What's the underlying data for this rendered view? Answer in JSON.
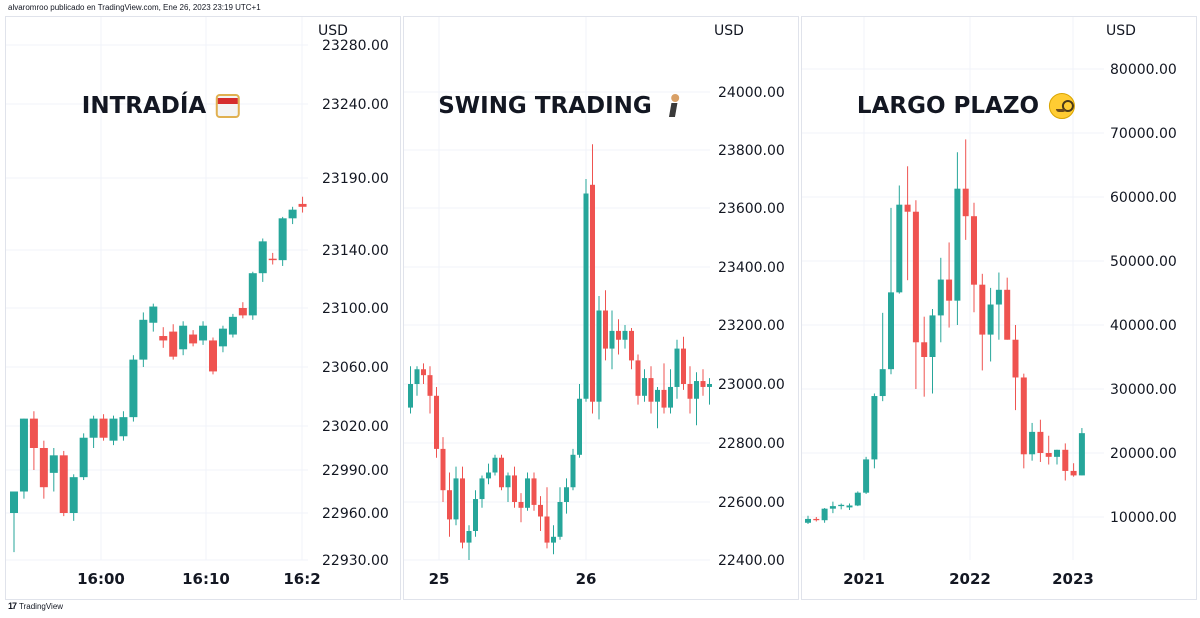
{
  "header": {
    "text": "alvaromroo publicado en TradingView.com, Ene 26, 2023 23:19 UTC+1"
  },
  "footer": {
    "logo": "17",
    "brand": "TradingView"
  },
  "colors": {
    "up": "#26a69a",
    "down": "#ef5350",
    "grid": "#f0f3fa",
    "axis_text": "#131722"
  },
  "chart_data": [
    {
      "type": "candlestick",
      "title": "INTRADÍA",
      "title_icon": "ninja-emoji-icon",
      "currency": "USD",
      "y_ticks": [
        "23280.00",
        "23240.00",
        "23190.00",
        "23140.00",
        "23100.00",
        "23060.00",
        "23020.00",
        "22990.00",
        "22960.00",
        "22930.00"
      ],
      "y_tick_values": [
        23280,
        23240,
        23190,
        23140,
        23100,
        23060,
        23020,
        22990,
        22960,
        22930
      ],
      "x_ticks": [
        "16:00",
        "16:10",
        "16:2"
      ],
      "candles": [
        {
          "o": 22960,
          "h": 22975,
          "l": 22935,
          "c": 22975
        },
        {
          "o": 22975,
          "h": 23025,
          "l": 22970,
          "c": 23025
        },
        {
          "o": 23025,
          "h": 23030,
          "l": 22990,
          "c": 23005
        },
        {
          "o": 23005,
          "h": 23010,
          "l": 22970,
          "c": 22978
        },
        {
          "o": 22988,
          "h": 23005,
          "l": 22975,
          "c": 23000
        },
        {
          "o": 23000,
          "h": 23003,
          "l": 22958,
          "c": 22960
        },
        {
          "o": 22960,
          "h": 22987,
          "l": 22955,
          "c": 22985
        },
        {
          "o": 22985,
          "h": 23015,
          "l": 22983,
          "c": 23012
        },
        {
          "o": 23012,
          "h": 23027,
          "l": 23005,
          "c": 23025
        },
        {
          "o": 23025,
          "h": 23028,
          "l": 23010,
          "c": 23012
        },
        {
          "o": 23010,
          "h": 23027,
          "l": 23007,
          "c": 23025
        },
        {
          "o": 23013,
          "h": 23030,
          "l": 23010,
          "c": 23026
        },
        {
          "o": 23026,
          "h": 23068,
          "l": 23023,
          "c": 23065
        },
        {
          "o": 23065,
          "h": 23097,
          "l": 23060,
          "c": 23092
        },
        {
          "o": 23090,
          "h": 23103,
          "l": 23084,
          "c": 23101
        },
        {
          "o": 23081,
          "h": 23087,
          "l": 23073,
          "c": 23078
        },
        {
          "o": 23084,
          "h": 23089,
          "l": 23065,
          "c": 23067
        },
        {
          "o": 23072,
          "h": 23091,
          "l": 23068,
          "c": 23088
        },
        {
          "o": 23082,
          "h": 23085,
          "l": 23074,
          "c": 23076
        },
        {
          "o": 23078,
          "h": 23091,
          "l": 23075,
          "c": 23088
        },
        {
          "o": 23078,
          "h": 23080,
          "l": 23055,
          "c": 23057
        },
        {
          "o": 23074,
          "h": 23088,
          "l": 23070,
          "c": 23086
        },
        {
          "o": 23082,
          "h": 23096,
          "l": 23080,
          "c": 23094
        },
        {
          "o": 23100,
          "h": 23104,
          "l": 23093,
          "c": 23095
        },
        {
          "o": 23095,
          "h": 23125,
          "l": 23092,
          "c": 23124
        },
        {
          "o": 23124,
          "h": 23148,
          "l": 23118,
          "c": 23146
        },
        {
          "o": 23134,
          "h": 23138,
          "l": 23130,
          "c": 23133
        },
        {
          "o": 23133,
          "h": 23163,
          "l": 23129,
          "c": 23162
        },
        {
          "o": 23162,
          "h": 23170,
          "l": 23158,
          "c": 23168
        },
        {
          "o": 23172,
          "h": 23177,
          "l": 23166,
          "c": 23170
        },
        {
          "o": 23180,
          "h": 23186,
          "l": 23172,
          "c": 23174
        }
      ]
    },
    {
      "type": "candlestick",
      "title": "SWING TRADING",
      "title_icon": "golfer-emoji-icon",
      "currency": "USD",
      "y_ticks": [
        "24000.00",
        "23800.00",
        "23600.00",
        "23400.00",
        "23200.00",
        "23000.00",
        "22800.00",
        "22600.00",
        "22400.00"
      ],
      "y_tick_values": [
        24000,
        23800,
        23600,
        23400,
        23200,
        23000,
        22800,
        22600,
        22400
      ],
      "x_ticks": [
        "25",
        "26"
      ],
      "candles": [
        {
          "o": 22920,
          "h": 23060,
          "l": 22900,
          "c": 23000
        },
        {
          "o": 23000,
          "h": 23060,
          "l": 22960,
          "c": 23050
        },
        {
          "o": 23050,
          "h": 23070,
          "l": 23000,
          "c": 23030
        },
        {
          "o": 23030,
          "h": 23060,
          "l": 22900,
          "c": 22960
        },
        {
          "o": 22960,
          "h": 22990,
          "l": 22750,
          "c": 22780
        },
        {
          "o": 22780,
          "h": 22820,
          "l": 22600,
          "c": 22640
        },
        {
          "o": 22640,
          "h": 22700,
          "l": 22480,
          "c": 22540
        },
        {
          "o": 22540,
          "h": 22720,
          "l": 22520,
          "c": 22680
        },
        {
          "o": 22680,
          "h": 22720,
          "l": 22440,
          "c": 22460
        },
        {
          "o": 22460,
          "h": 22520,
          "l": 22400,
          "c": 22500
        },
        {
          "o": 22500,
          "h": 22640,
          "l": 22480,
          "c": 22610
        },
        {
          "o": 22610,
          "h": 22690,
          "l": 22580,
          "c": 22680
        },
        {
          "o": 22680,
          "h": 22730,
          "l": 22660,
          "c": 22700
        },
        {
          "o": 22700,
          "h": 22760,
          "l": 22690,
          "c": 22750
        },
        {
          "o": 22750,
          "h": 22760,
          "l": 22640,
          "c": 22650
        },
        {
          "o": 22650,
          "h": 22700,
          "l": 22600,
          "c": 22690
        },
        {
          "o": 22690,
          "h": 22720,
          "l": 22580,
          "c": 22600
        },
        {
          "o": 22600,
          "h": 22630,
          "l": 22530,
          "c": 22580
        },
        {
          "o": 22580,
          "h": 22700,
          "l": 22570,
          "c": 22680
        },
        {
          "o": 22680,
          "h": 22700,
          "l": 22570,
          "c": 22590
        },
        {
          "o": 22590,
          "h": 22620,
          "l": 22500,
          "c": 22550
        },
        {
          "o": 22550,
          "h": 22650,
          "l": 22440,
          "c": 22460
        },
        {
          "o": 22460,
          "h": 22520,
          "l": 22420,
          "c": 22480
        },
        {
          "o": 22480,
          "h": 22650,
          "l": 22470,
          "c": 22600
        },
        {
          "o": 22600,
          "h": 22680,
          "l": 22560,
          "c": 22650
        },
        {
          "o": 22650,
          "h": 22780,
          "l": 22640,
          "c": 22760
        },
        {
          "o": 22760,
          "h": 23000,
          "l": 22750,
          "c": 22950
        },
        {
          "o": 22950,
          "h": 23700,
          "l": 22940,
          "c": 23650
        },
        {
          "o": 23680,
          "h": 23820,
          "l": 22900,
          "c": 22940
        },
        {
          "o": 22940,
          "h": 23300,
          "l": 22880,
          "c": 23250
        },
        {
          "o": 23250,
          "h": 23320,
          "l": 23080,
          "c": 23120
        },
        {
          "o": 23120,
          "h": 23250,
          "l": 23050,
          "c": 23180
        },
        {
          "o": 23180,
          "h": 23220,
          "l": 23100,
          "c": 23150
        },
        {
          "o": 23150,
          "h": 23200,
          "l": 23120,
          "c": 23180
        },
        {
          "o": 23180,
          "h": 23190,
          "l": 23050,
          "c": 23080
        },
        {
          "o": 23080,
          "h": 23100,
          "l": 22930,
          "c": 22960
        },
        {
          "o": 22960,
          "h": 23050,
          "l": 22940,
          "c": 23020
        },
        {
          "o": 23020,
          "h": 23060,
          "l": 22900,
          "c": 22940
        },
        {
          "o": 22940,
          "h": 22990,
          "l": 22850,
          "c": 22980
        },
        {
          "o": 22980,
          "h": 23070,
          "l": 22900,
          "c": 22920
        },
        {
          "o": 22920,
          "h": 23050,
          "l": 22900,
          "c": 22990
        },
        {
          "o": 22990,
          "h": 23150,
          "l": 22950,
          "c": 23120
        },
        {
          "o": 23120,
          "h": 23160,
          "l": 22980,
          "c": 23000
        },
        {
          "o": 23000,
          "h": 23060,
          "l": 22900,
          "c": 22950
        },
        {
          "o": 22950,
          "h": 23040,
          "l": 22860,
          "c": 23010
        },
        {
          "o": 23010,
          "h": 23050,
          "l": 22960,
          "c": 22990
        },
        {
          "o": 22990,
          "h": 23020,
          "l": 22930,
          "c": 23000
        },
        {
          "o": 23000,
          "h": 23080,
          "l": 22990,
          "c": 23050
        }
      ]
    },
    {
      "type": "candlestick",
      "title": "LARGO PLAZO",
      "title_icon": "monocle-emoji-icon",
      "currency": "USD",
      "y_ticks": [
        "80000.00",
        "70000.00",
        "60000.00",
        "50000.00",
        "40000.00",
        "30000.00",
        "20000.00",
        "10000.00"
      ],
      "y_tick_values": [
        80000,
        70000,
        60000,
        50000,
        40000,
        30000,
        20000,
        10000
      ],
      "x_ticks": [
        "2021",
        "2022",
        "2023"
      ],
      "candles": [
        {
          "o": 9100,
          "h": 10200,
          "l": 8900,
          "c": 9700
        },
        {
          "o": 9700,
          "h": 10000,
          "l": 9300,
          "c": 9500
        },
        {
          "o": 9500,
          "h": 11400,
          "l": 9100,
          "c": 11300
        },
        {
          "o": 11300,
          "h": 12400,
          "l": 10600,
          "c": 11700
        },
        {
          "o": 11700,
          "h": 12100,
          "l": 11200,
          "c": 11900
        },
        {
          "o": 11500,
          "h": 12100,
          "l": 11100,
          "c": 11800
        },
        {
          "o": 11800,
          "h": 14000,
          "l": 11700,
          "c": 13800
        },
        {
          "o": 13800,
          "h": 19400,
          "l": 13600,
          "c": 19000
        },
        {
          "o": 19000,
          "h": 29300,
          "l": 17600,
          "c": 28900
        },
        {
          "o": 28900,
          "h": 41900,
          "l": 28100,
          "c": 33100
        },
        {
          "o": 33100,
          "h": 58300,
          "l": 32300,
          "c": 45100
        },
        {
          "o": 45100,
          "h": 61800,
          "l": 44900,
          "c": 58800
        },
        {
          "o": 58800,
          "h": 64800,
          "l": 47000,
          "c": 57700
        },
        {
          "o": 57700,
          "h": 59500,
          "l": 30000,
          "c": 37300
        },
        {
          "o": 37300,
          "h": 41300,
          "l": 28800,
          "c": 35000
        },
        {
          "o": 35000,
          "h": 42500,
          "l": 29300,
          "c": 41500
        },
        {
          "o": 41500,
          "h": 50500,
          "l": 37300,
          "c": 47100
        },
        {
          "o": 47100,
          "h": 52900,
          "l": 39600,
          "c": 43800
        },
        {
          "o": 43800,
          "h": 67000,
          "l": 40000,
          "c": 61300
        },
        {
          "o": 61300,
          "h": 69000,
          "l": 53300,
          "c": 57000
        },
        {
          "o": 57000,
          "h": 59100,
          "l": 42000,
          "c": 46300
        },
        {
          "o": 46300,
          "h": 48000,
          "l": 32900,
          "c": 38500
        },
        {
          "o": 38500,
          "h": 45800,
          "l": 34300,
          "c": 43200
        },
        {
          "o": 43200,
          "h": 48200,
          "l": 37700,
          "c": 45500
        },
        {
          "o": 45500,
          "h": 47400,
          "l": 37700,
          "c": 37700
        },
        {
          "o": 37700,
          "h": 40000,
          "l": 26700,
          "c": 31800
        },
        {
          "o": 31800,
          "h": 32400,
          "l": 17600,
          "c": 19800
        },
        {
          "o": 19800,
          "h": 24700,
          "l": 18800,
          "c": 23300
        },
        {
          "o": 23300,
          "h": 25200,
          "l": 18600,
          "c": 20000
        },
        {
          "o": 20000,
          "h": 22700,
          "l": 18200,
          "c": 19400
        },
        {
          "o": 19400,
          "h": 20500,
          "l": 18200,
          "c": 20500
        },
        {
          "o": 20500,
          "h": 21500,
          "l": 15700,
          "c": 17200
        },
        {
          "o": 17200,
          "h": 18400,
          "l": 16300,
          "c": 16500
        },
        {
          "o": 16500,
          "h": 23900,
          "l": 16500,
          "c": 23100
        }
      ]
    }
  ]
}
